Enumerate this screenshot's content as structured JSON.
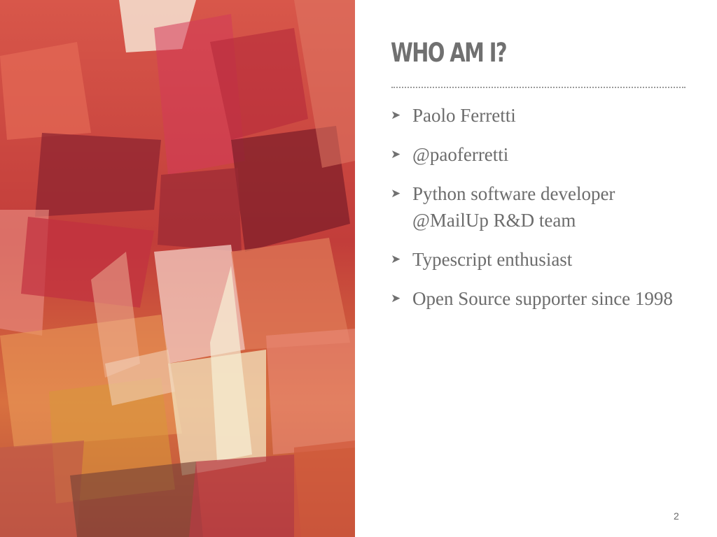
{
  "slide": {
    "title": "WHO AM I?",
    "bullet_marker": "➤",
    "bullets": [
      "Paolo Ferretti",
      "@paoferretti",
      "Python software developer @MailUp R&D team",
      "Typescript enthusiast",
      "Open Source supporter since 1998"
    ],
    "page_number": "2"
  },
  "colors": {
    "title": "#707070",
    "body_text": "#6c6c6c",
    "divider": "#9a9a9a",
    "art_base": "#c84a3c"
  }
}
